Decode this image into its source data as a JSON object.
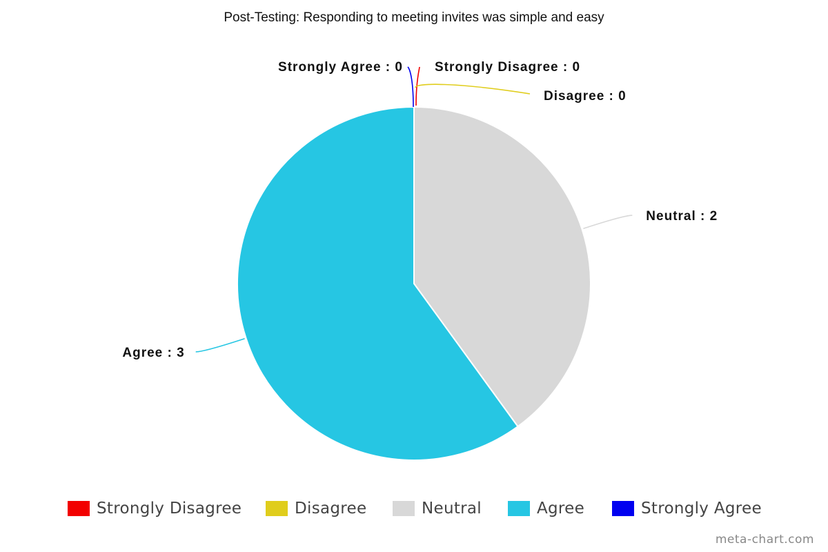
{
  "chart_data": {
    "type": "pie",
    "title": "Post-Testing: Responding to meeting invites was simple and easy",
    "categories": [
      "Strongly Disagree",
      "Disagree",
      "Neutral",
      "Agree",
      "Strongly Agree"
    ],
    "values": [
      0,
      0,
      2,
      3,
      0
    ],
    "data_labels": [
      "Strongly Disagree : 0",
      "Disagree : 0",
      "Neutral : 2",
      "Agree : 3",
      "Strongly Agree : 0"
    ],
    "colors": [
      "#f20000",
      "#e0cd1c",
      "#d8d8d8",
      "#26c6e3",
      "#0000f0"
    ],
    "legend_position": "bottom"
  },
  "watermark": "meta-chart.com"
}
